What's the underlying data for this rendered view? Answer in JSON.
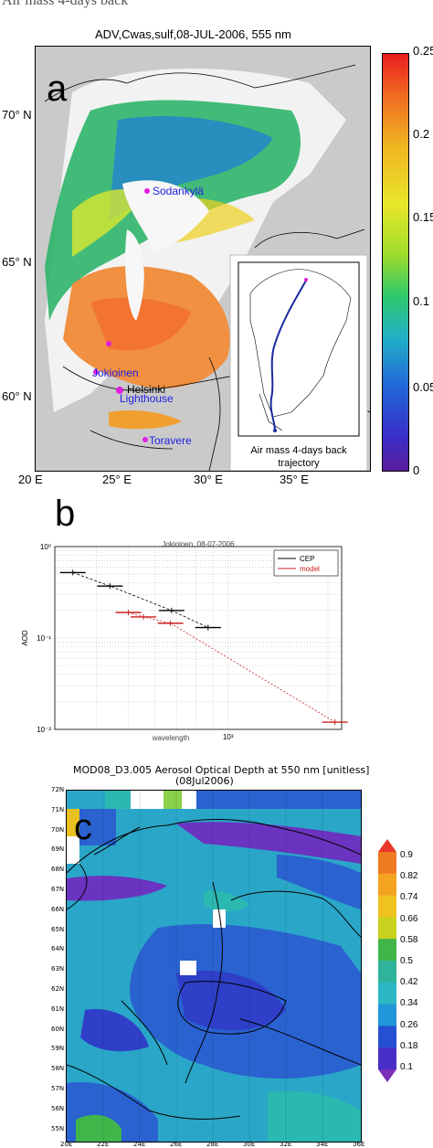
{
  "top_caption": "Air mass 4-days back",
  "panel_a": {
    "label": "a",
    "title": "ADV,Cwas,sulf,08-JUL-2006, 555 nm",
    "lat_labels": [
      "70° N",
      "65° N",
      "60° N"
    ],
    "lon_labels": [
      "20 E",
      "25° E",
      "30° E",
      "35° E"
    ],
    "colorbar_ticks": [
      "0.25",
      "0.2",
      "0.15",
      "0.1",
      "0.05",
      "0"
    ],
    "stations": [
      "Sodankylä",
      "Jokioinen",
      "Helsinki",
      "Lighthouse",
      "Toravere"
    ],
    "inset_caption_1": "Air mass 4-days back",
    "inset_caption_2": "trajectory"
  },
  "panel_b": {
    "label": "b",
    "chart_data": {
      "type": "line",
      "title": "Jokioinen, 08-07-2006",
      "xlabel": "wavelength",
      "ylabel": "AOD",
      "yscale": "log",
      "xscale": "log",
      "ylim": [
        0.01,
        1
      ],
      "y_tick_labels": [
        "10⁰",
        "10⁻¹",
        "10⁻²"
      ],
      "x_tick_labels": [
        "10³"
      ],
      "legend_position": "top-right",
      "series": [
        {
          "name": "CEP",
          "color": "#000000",
          "x": [
            340,
            440,
            675,
            870
          ],
          "y": [
            0.52,
            0.37,
            0.2,
            0.13
          ]
        },
        {
          "name": "model",
          "color": "#cc2020",
          "x": [
            500,
            555,
            670,
            2100
          ],
          "y": [
            0.19,
            0.17,
            0.145,
            0.012
          ]
        }
      ]
    }
  },
  "panel_c": {
    "label": "c",
    "title_1": "MOD08_D3.005 Aerosol Optical Depth at 550 nm [unitless]",
    "title_2": "(08Jul2006)",
    "lat_labels": [
      "72N",
      "71N",
      "70N",
      "69N",
      "68N",
      "67N",
      "66N",
      "65N",
      "64N",
      "63N",
      "62N",
      "61N",
      "60N",
      "59N",
      "58N",
      "57N",
      "56N",
      "55N"
    ],
    "lon_labels": [
      "20E",
      "22E",
      "24E",
      "26E",
      "28E",
      "30E",
      "32E",
      "34E",
      "36E"
    ],
    "colorbar_ticks": [
      "0.9",
      "0.82",
      "0.74",
      "0.66",
      "0.58",
      "0.5",
      "0.42",
      "0.34",
      "0.26",
      "0.18",
      "0.1"
    ],
    "colorbar_colors": [
      "#e8382a",
      "#f07a22",
      "#f4a321",
      "#f0c21f",
      "#c8d21f",
      "#3fb54a",
      "#2fb39a",
      "#2bb8c4",
      "#2196d8",
      "#2550d4",
      "#4a2ec8",
      "#7a30b8"
    ]
  }
}
